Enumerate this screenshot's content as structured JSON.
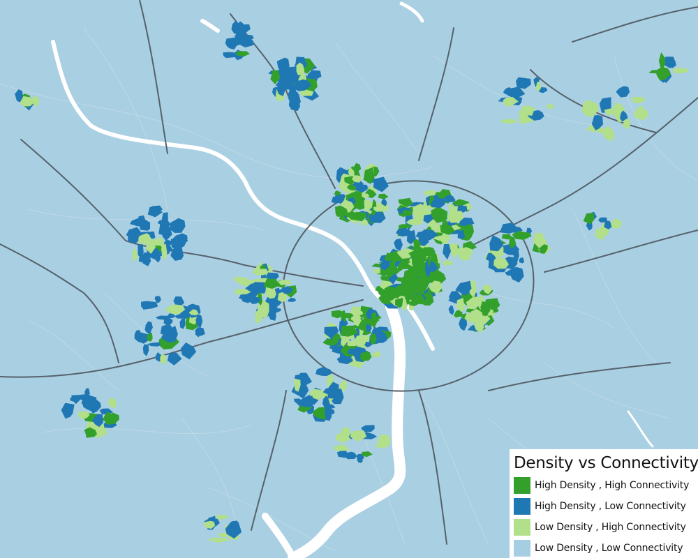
{
  "map": {
    "water_color": "#ffffff",
    "land_color": "#a9cfe2",
    "road_color": "#55616b",
    "minor_road_color": "#c8dde8",
    "categories": [
      {
        "key": "hd_hc",
        "color": "#33a02c"
      },
      {
        "key": "hd_lc",
        "color": "#1f78b4"
      },
      {
        "key": "ld_hc",
        "color": "#b2df8a"
      },
      {
        "key": "ld_lc",
        "color": "#a6cee3"
      }
    ]
  },
  "legend": {
    "title": "Density vs Connectivity",
    "items": [
      {
        "label": "High Density , High Connectivity",
        "color": "#33a02c"
      },
      {
        "label": "High Density , Low Connectivity",
        "color": "#1f78b4"
      },
      {
        "label": "Low Density , High Connectivity",
        "color": "#b2df8a"
      },
      {
        "label": "Low Density , Low Connectivity",
        "color": "#a6cee3"
      }
    ]
  }
}
